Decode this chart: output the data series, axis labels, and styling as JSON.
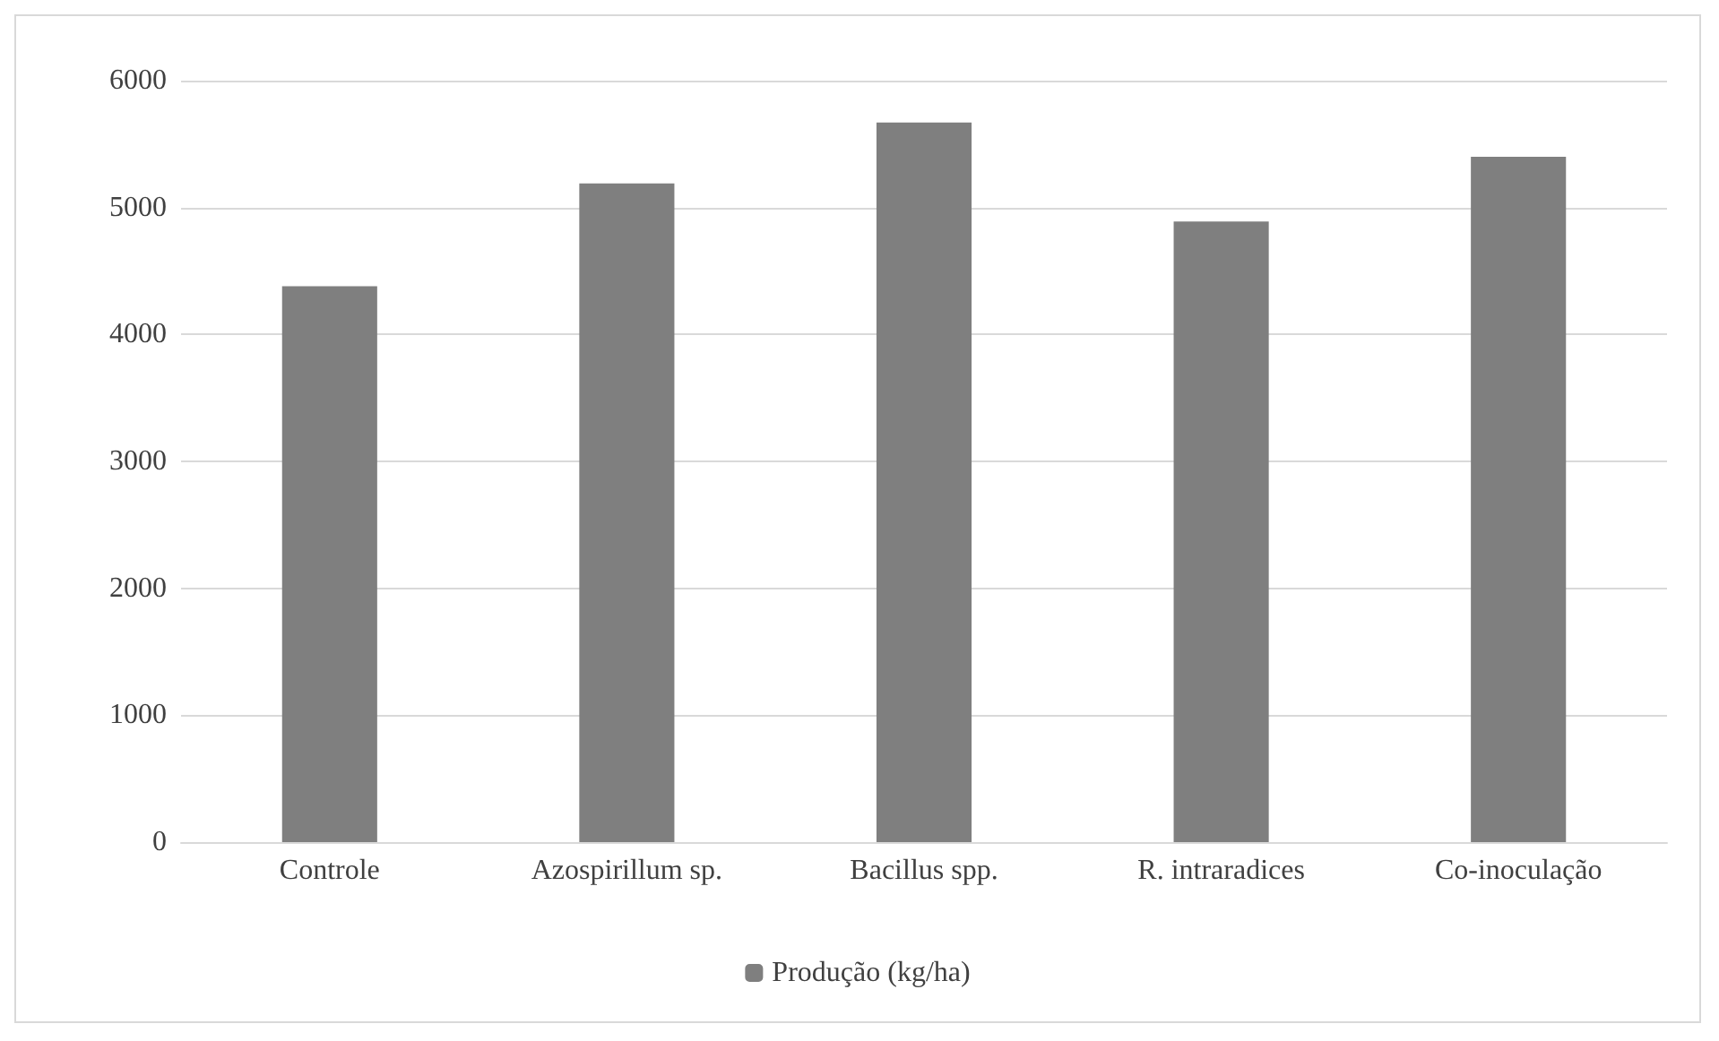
{
  "chart_data": {
    "type": "bar",
    "categories": [
      "Controle",
      "Azospirillum sp.",
      "Bacillus spp.",
      "R. intraradices",
      "Co-inoculação"
    ],
    "series": [
      {
        "name": "Produção (kg/ha)",
        "color": "#7f7f7f",
        "values": [
          4380,
          5190,
          5670,
          4890,
          5400
        ]
      }
    ],
    "ylim": [
      0,
      6000
    ],
    "yticks": [
      0,
      1000,
      2000,
      3000,
      4000,
      5000,
      6000
    ],
    "grid": "y",
    "legend": "bottom"
  }
}
